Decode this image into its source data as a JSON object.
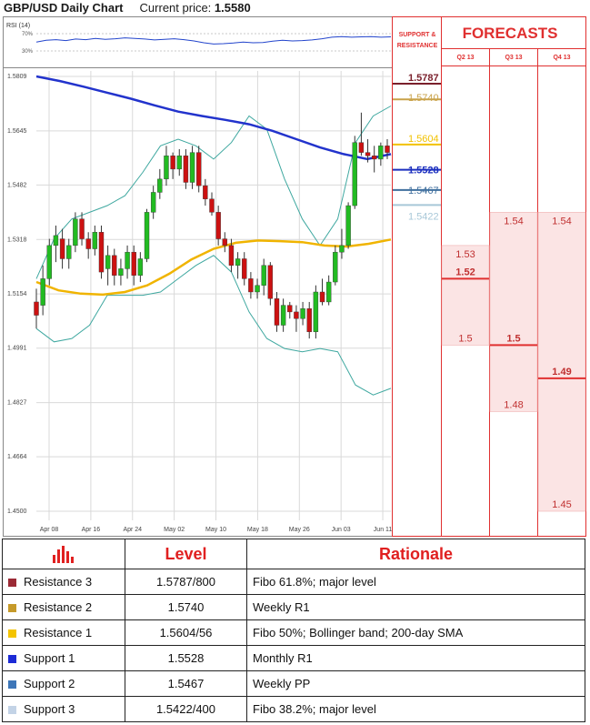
{
  "header": {
    "title": "GBP/USD Daily Chart",
    "price_label": "Current price:",
    "price_value": "1.5580"
  },
  "rsi_label": "RSI (14)",
  "rsi_ticks": [
    "70%",
    "30%"
  ],
  "forecasts_title": "FORECASTS",
  "sr_header": "SUPPORT & RESISTANCE",
  "colors": {
    "resistance3": "#7a1f2b",
    "resistance2": "#c9a24a",
    "resistance1": "#f2c200",
    "support1": "#1b2fbf",
    "support2": "#3f6f9e",
    "support3": "#a8c8d8",
    "sma200": "#2233cc",
    "sma50": "#f0b400",
    "bollinger": "#3fa8a0",
    "up_candle": "#22bb22",
    "down_candle": "#cc1111",
    "forecast_red": "#e03030",
    "forecast_fill": "#fbe4e4"
  },
  "chart_data": [
    {
      "type": "candlestick",
      "title": "GBP/USD Daily Chart",
      "y_ticks": [
        "1.5809",
        "1.5645",
        "1.5482",
        "1.5318",
        "1.5154",
        "1.4991",
        "1.4827",
        "1.4664",
        "1.4500"
      ],
      "ylim": [
        1.45,
        1.5809
      ],
      "x_ticks": [
        "Apr 08",
        "Apr 16",
        "Apr 24",
        "May 02",
        "May 10",
        "May 18",
        "May 26",
        "Jun 03",
        "Jun 11"
      ],
      "candles": [
        {
          "o": 1.513,
          "h": 1.517,
          "l": 1.505,
          "c": 1.509
        },
        {
          "o": 1.512,
          "h": 1.524,
          "l": 1.509,
          "c": 1.52
        },
        {
          "o": 1.52,
          "h": 1.532,
          "l": 1.518,
          "c": 1.53
        },
        {
          "o": 1.53,
          "h": 1.536,
          "l": 1.525,
          "c": 1.533
        },
        {
          "o": 1.532,
          "h": 1.535,
          "l": 1.523,
          "c": 1.526
        },
        {
          "o": 1.526,
          "h": 1.532,
          "l": 1.523,
          "c": 1.53
        },
        {
          "o": 1.53,
          "h": 1.54,
          "l": 1.528,
          "c": 1.538
        },
        {
          "o": 1.538,
          "h": 1.54,
          "l": 1.53,
          "c": 1.532
        },
        {
          "o": 1.532,
          "h": 1.534,
          "l": 1.526,
          "c": 1.529
        },
        {
          "o": 1.529,
          "h": 1.536,
          "l": 1.527,
          "c": 1.534
        },
        {
          "o": 1.534,
          "h": 1.536,
          "l": 1.52,
          "c": 1.522
        },
        {
          "o": 1.523,
          "h": 1.53,
          "l": 1.518,
          "c": 1.527
        },
        {
          "o": 1.527,
          "h": 1.529,
          "l": 1.518,
          "c": 1.521
        },
        {
          "o": 1.521,
          "h": 1.526,
          "l": 1.518,
          "c": 1.523
        },
        {
          "o": 1.523,
          "h": 1.53,
          "l": 1.52,
          "c": 1.528
        },
        {
          "o": 1.528,
          "h": 1.53,
          "l": 1.518,
          "c": 1.521
        },
        {
          "o": 1.521,
          "h": 1.528,
          "l": 1.519,
          "c": 1.526
        },
        {
          "o": 1.526,
          "h": 1.541,
          "l": 1.525,
          "c": 1.54
        },
        {
          "o": 1.54,
          "h": 1.548,
          "l": 1.538,
          "c": 1.546
        },
        {
          "o": 1.546,
          "h": 1.553,
          "l": 1.544,
          "c": 1.55
        },
        {
          "o": 1.55,
          "h": 1.56,
          "l": 1.548,
          "c": 1.557
        },
        {
          "o": 1.557,
          "h": 1.558,
          "l": 1.55,
          "c": 1.553
        },
        {
          "o": 1.553,
          "h": 1.559,
          "l": 1.551,
          "c": 1.557
        },
        {
          "o": 1.557,
          "h": 1.559,
          "l": 1.547,
          "c": 1.549
        },
        {
          "o": 1.549,
          "h": 1.56,
          "l": 1.547,
          "c": 1.558
        },
        {
          "o": 1.558,
          "h": 1.56,
          "l": 1.546,
          "c": 1.548
        },
        {
          "o": 1.548,
          "h": 1.55,
          "l": 1.542,
          "c": 1.544
        },
        {
          "o": 1.544,
          "h": 1.546,
          "l": 1.539,
          "c": 1.54
        },
        {
          "o": 1.54,
          "h": 1.542,
          "l": 1.53,
          "c": 1.532
        },
        {
          "o": 1.532,
          "h": 1.534,
          "l": 1.528,
          "c": 1.53
        },
        {
          "o": 1.53,
          "h": 1.532,
          "l": 1.522,
          "c": 1.524
        },
        {
          "o": 1.524,
          "h": 1.528,
          "l": 1.52,
          "c": 1.526
        },
        {
          "o": 1.526,
          "h": 1.528,
          "l": 1.518,
          "c": 1.52
        },
        {
          "o": 1.52,
          "h": 1.522,
          "l": 1.514,
          "c": 1.516
        },
        {
          "o": 1.516,
          "h": 1.52,
          "l": 1.514,
          "c": 1.518
        },
        {
          "o": 1.518,
          "h": 1.526,
          "l": 1.515,
          "c": 1.524
        },
        {
          "o": 1.524,
          "h": 1.525,
          "l": 1.512,
          "c": 1.514
        },
        {
          "o": 1.514,
          "h": 1.516,
          "l": 1.504,
          "c": 1.506
        },
        {
          "o": 1.506,
          "h": 1.514,
          "l": 1.504,
          "c": 1.512
        },
        {
          "o": 1.512,
          "h": 1.513,
          "l": 1.508,
          "c": 1.51
        },
        {
          "o": 1.51,
          "h": 1.512,
          "l": 1.504,
          "c": 1.508
        },
        {
          "o": 1.508,
          "h": 1.513,
          "l": 1.506,
          "c": 1.511
        },
        {
          "o": 1.511,
          "h": 1.513,
          "l": 1.502,
          "c": 1.504
        },
        {
          "o": 1.504,
          "h": 1.518,
          "l": 1.502,
          "c": 1.516
        },
        {
          "o": 1.516,
          "h": 1.52,
          "l": 1.512,
          "c": 1.513
        },
        {
          "o": 1.513,
          "h": 1.521,
          "l": 1.512,
          "c": 1.519
        },
        {
          "o": 1.519,
          "h": 1.53,
          "l": 1.518,
          "c": 1.528
        },
        {
          "o": 1.528,
          "h": 1.535,
          "l": 1.526,
          "c": 1.53
        },
        {
          "o": 1.53,
          "h": 1.543,
          "l": 1.529,
          "c": 1.542
        },
        {
          "o": 1.542,
          "h": 1.563,
          "l": 1.541,
          "c": 1.561
        },
        {
          "o": 1.561,
          "h": 1.57,
          "l": 1.557,
          "c": 1.558
        },
        {
          "o": 1.558,
          "h": 1.562,
          "l": 1.555,
          "c": 1.557
        },
        {
          "o": 1.557,
          "h": 1.56,
          "l": 1.552,
          "c": 1.556
        },
        {
          "o": 1.556,
          "h": 1.561,
          "l": 1.554,
          "c": 1.56
        },
        {
          "o": 1.56,
          "h": 1.562,
          "l": 1.556,
          "c": 1.558
        }
      ],
      "sma200": [
        1.5809,
        1.5795,
        1.5778,
        1.576,
        1.5742,
        1.5722,
        1.5703,
        1.569,
        1.5678,
        1.5665,
        1.5645,
        1.562,
        1.5595,
        1.5575,
        1.556,
        1.5575
      ],
      "sma50": [
        1.519,
        1.5165,
        1.5155,
        1.5152,
        1.516,
        1.518,
        1.5215,
        1.5258,
        1.529,
        1.5308,
        1.5315,
        1.5313,
        1.531,
        1.53,
        1.5297,
        1.5305,
        1.5318
      ],
      "bb_upper": [
        1.52,
        1.532,
        1.538,
        1.54,
        1.542,
        1.545,
        1.552,
        1.56,
        1.562,
        1.56,
        1.556,
        1.561,
        1.569,
        1.565,
        1.55,
        1.538,
        1.53,
        1.538,
        1.561,
        1.569,
        1.572
      ],
      "bb_lower": [
        1.505,
        1.501,
        1.502,
        1.506,
        1.515,
        1.515,
        1.515,
        1.516,
        1.52,
        1.524,
        1.527,
        1.522,
        1.51,
        1.502,
        1.499,
        1.498,
        1.499,
        1.498,
        1.488,
        1.485,
        1.487
      ],
      "levels": [
        {
          "label": "1.5787",
          "value": 1.5787,
          "bold": true
        },
        {
          "label": "1.5740",
          "value": 1.574
        },
        {
          "label": "1.5604",
          "value": 1.5604
        },
        {
          "label": "1.5528",
          "value": 1.5528,
          "bold": true
        },
        {
          "label": "1.5467",
          "value": 1.5467
        },
        {
          "label": "1.5422",
          "value": 1.5422
        }
      ]
    },
    {
      "type": "line",
      "title": "RSI (14)",
      "y_ticks": [
        "70%",
        "30%"
      ],
      "ylim": [
        0,
        100
      ],
      "values": [
        52,
        58,
        60,
        57,
        62,
        60,
        64,
        61,
        63,
        66,
        64,
        62,
        59,
        61,
        63,
        60,
        56,
        50,
        46,
        47,
        49,
        52,
        50,
        51,
        55,
        58,
        56,
        57,
        59,
        63,
        68,
        70,
        68,
        69,
        70,
        68,
        69
      ]
    },
    {
      "type": "range",
      "title": "FORECASTS",
      "categories": [
        "Q2 13",
        "Q3 13",
        "Q4 13"
      ],
      "ylim": [
        1.45,
        1.5809
      ],
      "ranges": [
        {
          "high": 1.53,
          "mean": 1.52,
          "low": 1.5,
          "labels": {
            "high": "1.53",
            "mean": "1.52",
            "low": "1.5"
          }
        },
        {
          "high": 1.54,
          "mean": 1.5,
          "low": 1.48,
          "labels": {
            "high": "1.54",
            "mean": "1.5",
            "low": "1.48"
          }
        },
        {
          "high": 1.54,
          "mean": 1.49,
          "low": 1.45,
          "labels": {
            "high": "1.54",
            "mean": "1.49",
            "low": "1.45"
          }
        }
      ]
    }
  ],
  "table": {
    "col_level": "Level",
    "col_rationale": "Rationale",
    "rows": [
      {
        "name": "Resistance 3",
        "level": "1.5787/800",
        "rationale": "Fibo 61.8%; major level",
        "color": "#9b2a35"
      },
      {
        "name": "Resistance 2",
        "level": "1.5740",
        "rationale": "Weekly R1",
        "color": "#c69a2a"
      },
      {
        "name": "Resistance 1",
        "level": "1.5604/56",
        "rationale": "Fibo 50%; Bollinger band; 200-day SMA",
        "color": "#f4c400"
      },
      {
        "name": "Support 1",
        "level": "1.5528",
        "rationale": "Monthly R1",
        "color": "#1c2bd6"
      },
      {
        "name": "Support 2",
        "level": "1.5467",
        "rationale": "Weekly PP",
        "color": "#3d76b8"
      },
      {
        "name": "Support 3",
        "level": "1.5422/400",
        "rationale": "Fibo 38.2%; major level",
        "color": "#c3d3e6"
      }
    ]
  }
}
